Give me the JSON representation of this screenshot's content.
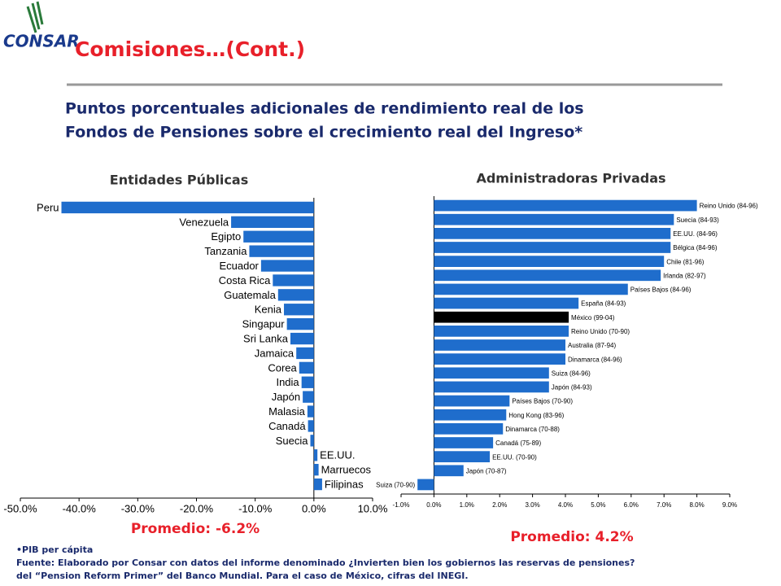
{
  "logo": "CONSAR",
  "header": {
    "title": "Comisiones…(Cont.)",
    "subtitle": [
      "Puntos porcentuales adicionales de rendimiento real de los",
      "Fondos de Pensiones sobre el crecimiento real del Ingreso*"
    ]
  },
  "chart_data": [
    {
      "type": "hbar",
      "title": "Entidades Públicas",
      "annotation": "Promedio: -6.2%",
      "color": "#1f6dcc",
      "categories": [
        "Peru",
        "Venezuela",
        "Egipto",
        "Tanzania",
        "Ecuador",
        "Costa Rica",
        "Guatemala",
        "Kenia",
        "Singapur",
        "Sri Lanka",
        "Jamaica",
        "Corea",
        "India",
        "Japón",
        "Malasia",
        "Canadá",
        "Suecia",
        "EE.UU.",
        "Marruecos",
        "Filipinas"
      ],
      "values": [
        -43.0,
        -14.1,
        -12.0,
        -11.0,
        -9.0,
        -7.0,
        -6.1,
        -5.1,
        -4.6,
        -4.0,
        -3.0,
        -2.5,
        -2.1,
        -1.9,
        -1.1,
        -1.0,
        -0.6,
        0.6,
        0.8,
        1.4
      ],
      "xlim": [
        -50,
        10
      ],
      "xticks": [
        {
          "value": -50,
          "label": "-50.0%"
        },
        {
          "value": -40,
          "label": "-40.0%"
        },
        {
          "value": -30,
          "label": "-30.0%"
        },
        {
          "value": -20,
          "label": "-20.0%"
        },
        {
          "value": -10,
          "label": "-10.0%"
        },
        {
          "value": 0,
          "label": "0.0%"
        },
        {
          "value": 10,
          "label": "10.0%"
        }
      ]
    },
    {
      "type": "hbar",
      "title": "Administradoras Privadas",
      "annotation": "Promedio: 4.2%",
      "categories": [
        "Reino Unido (84-96)",
        "Suecia (84-93)",
        "EE.UU. (84-96)",
        "Bélgica (84-96)",
        "Chile (81-96)",
        "Irlanda (82-97)",
        "Países Bajos (84-96)",
        "España (84-93)",
        "México (99-04)",
        "Reino Unido (70-90)",
        "Australia (87-94)",
        "Dinamarca (84-96)",
        "Suiza (84-96)",
        "Japón (84-93)",
        "Países Bajos (70-90)",
        "Hong Kong (83-96)",
        "Dinamarca (70-88)",
        "Canadá (75-89)",
        "EE.UU. (70-90)",
        "Japón (70-87)",
        "Suiza (70-90)"
      ],
      "values": [
        8.0,
        7.3,
        7.2,
        7.2,
        7.0,
        6.9,
        5.9,
        4.4,
        4.1,
        4.1,
        4.0,
        4.0,
        3.5,
        3.5,
        2.3,
        2.2,
        2.1,
        1.8,
        1.7,
        0.9,
        -0.5
      ],
      "colors": [
        "#1f6dcc",
        "#1f6dcc",
        "#1f6dcc",
        "#1f6dcc",
        "#1f6dcc",
        "#1f6dcc",
        "#1f6dcc",
        "#1f6dcc",
        "#000000",
        "#1f6dcc",
        "#1f6dcc",
        "#1f6dcc",
        "#1f6dcc",
        "#1f6dcc",
        "#1f6dcc",
        "#1f6dcc",
        "#1f6dcc",
        "#1f6dcc",
        "#1f6dcc",
        "#1f6dcc",
        "#1f6dcc"
      ],
      "xlim": [
        -1,
        9
      ],
      "xticks": [
        {
          "value": -1,
          "label": "-1.0%"
        },
        {
          "value": 0,
          "label": "0.0%"
        },
        {
          "value": 1,
          "label": "1.0%"
        },
        {
          "value": 2,
          "label": "2.0%"
        },
        {
          "value": 3,
          "label": "3.0%"
        },
        {
          "value": 4,
          "label": "4.0%"
        },
        {
          "value": 5,
          "label": "5.0%"
        },
        {
          "value": 6,
          "label": "6.0%"
        },
        {
          "value": 7,
          "label": "7.0%"
        },
        {
          "value": 8,
          "label": "8.0%"
        },
        {
          "value": 9,
          "label": "9.0%"
        }
      ]
    }
  ],
  "footnotes": [
    "•PIB per cápita",
    "Fuente: Elaborado por Consar con datos del informe denominado ¿Invierten bien los gobiernos las reservas de pensiones?",
    "del “Pension Reform Primer” del Banco Mundial.   Para el caso de México, cifras del INEGI."
  ]
}
